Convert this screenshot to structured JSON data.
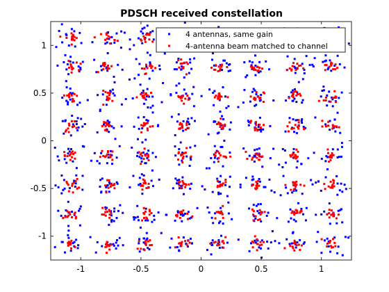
{
  "chart_data": {
    "type": "scatter",
    "title": "PDSCH received constellation",
    "xlabel": "",
    "ylabel": "",
    "xlim": [
      -1.25,
      1.25
    ],
    "ylim": [
      -1.25,
      1.25
    ],
    "x_ticks": [
      -1,
      -0.5,
      0,
      0.5,
      1
    ],
    "y_ticks": [
      -1,
      -0.5,
      0,
      0.5,
      1
    ],
    "x_tick_labels": [
      "-1",
      "-0.5",
      "0",
      "0.5",
      "1"
    ],
    "y_tick_labels": [
      "-1",
      "-0.5",
      "0",
      "0.5",
      "1"
    ],
    "grid": false,
    "legend_position": "top-right",
    "constellation": "64-QAM",
    "constellation_levels": [
      -1.0801,
      -0.7715,
      -0.4629,
      -0.1543,
      0.1543,
      0.4629,
      0.7715,
      1.0801
    ],
    "series": [
      {
        "name": "4 antennas, same gain",
        "color": "#0000ff",
        "marker": "point",
        "spread": 0.065,
        "points_per_symbol": 14
      },
      {
        "name": "4-antenna beam matched to channel",
        "color": "#ff0000",
        "marker": "point",
        "spread": 0.03,
        "points_per_symbol": 12
      }
    ]
  }
}
